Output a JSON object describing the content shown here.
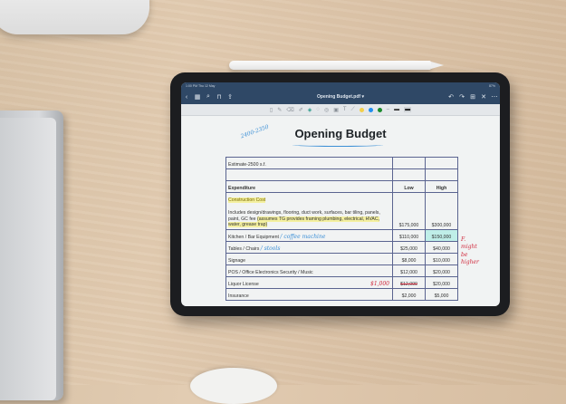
{
  "status": {
    "time": "1:00 PM  Thu 12 May",
    "battery": "87%"
  },
  "nav": {
    "title": "Opening Budget.pdf ▾",
    "icons": [
      "back-icon",
      "grid-icon",
      "search-icon",
      "bookmark-icon",
      "share-icon",
      "undo-icon",
      "redo-icon",
      "add-page-icon",
      "close-icon",
      "more-icon"
    ]
  },
  "toolbar": {
    "tools": [
      "reader-icon",
      "pen-icon",
      "eraser-icon",
      "highlighter-icon",
      "shapes-icon",
      "lasso-icon",
      "laser-icon",
      "image-icon",
      "text-icon",
      "pointer-icon"
    ],
    "colors": [
      "#f2cf4a",
      "#1f8ef0",
      "#1a8a2c"
    ]
  },
  "document": {
    "title": "Opening Budget",
    "annotations": {
      "area": "2400-2350",
      "coffee": "/ coffee machine",
      "stools": "/ stools",
      "liquor": "$1,000",
      "side": "F. might be higher"
    },
    "estimate": "Estimate-2500 s.f.",
    "headers": {
      "expenditure": "Expenditure",
      "low": "Low",
      "high": "High"
    },
    "construction": {
      "label": "Construction Cost",
      "desc": "Includes design/drawings, flooring, duct work, surfaces, bar tiling, panels, paint, GC fee ",
      "desc_hl": "(assumes TG provides framing plumbing, electrical, HVAC, water, grease trap)",
      "low": "$175,000",
      "high": "$300,000"
    },
    "rows": [
      {
        "label": "Kitchen / Bar Equipment",
        "low": "$110,000",
        "high": "$150,000"
      },
      {
        "label": "Tables / Chairs",
        "low": "$25,000",
        "high": "$40,000"
      },
      {
        "label": "Signage",
        "low": "$8,000",
        "high": "$10,000"
      },
      {
        "label": "POS / Office Electronics Security / Music",
        "low": "$12,000",
        "high": "$20,000"
      },
      {
        "label": "Liquor License",
        "low": "$12,000",
        "high": "$20,000"
      },
      {
        "label": "Insurance",
        "low": "$2,000",
        "high": "$5,000"
      }
    ]
  }
}
